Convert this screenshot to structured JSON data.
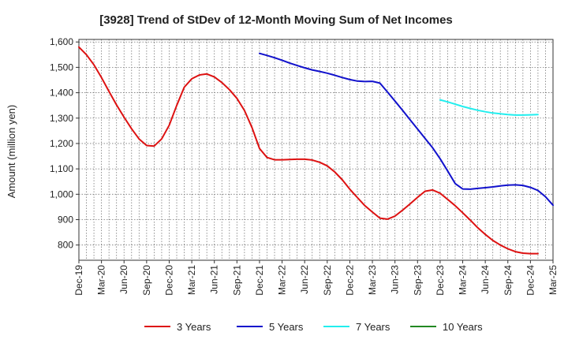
{
  "chart_data": {
    "type": "line",
    "title": "[3928]  Trend of StDev of 12-Month Moving Sum of Net Incomes",
    "ylabel": "Amount (million yen)",
    "xlabel": "",
    "ylim": [
      740,
      1610
    ],
    "yticks": [
      800,
      900,
      1000,
      1100,
      1200,
      1300,
      1400,
      1500,
      1600
    ],
    "ytick_labels": [
      "800",
      "900",
      "1,000",
      "1,100",
      "1,200",
      "1,300",
      "1,400",
      "1,500",
      "1,600"
    ],
    "xticks": [
      "Dec-19",
      "Mar-20",
      "Jun-20",
      "Sep-20",
      "Dec-20",
      "Mar-21",
      "Jun-21",
      "Sep-21",
      "Dec-21",
      "Mar-22",
      "Jun-22",
      "Sep-22",
      "Dec-22",
      "Mar-23",
      "Jun-23",
      "Sep-23",
      "Dec-23",
      "Mar-24",
      "Jun-24",
      "Sep-24",
      "Dec-24",
      "Mar-25"
    ],
    "grid": true,
    "legend_position": "bottom",
    "series": [
      {
        "name": "3 Years",
        "color": "#dd1111",
        "start_index": 0,
        "values": [
          1580,
          1550,
          1510,
          1460,
          1405,
          1352,
          1304,
          1258,
          1218,
          1192,
          1190,
          1218,
          1272,
          1350,
          1422,
          1455,
          1470,
          1474,
          1462,
          1440,
          1412,
          1378,
          1330,
          1263,
          1180,
          1145,
          1136,
          1136,
          1137,
          1138,
          1138,
          1135,
          1126,
          1112,
          1088,
          1057,
          1020,
          987,
          955,
          930,
          906,
          902,
          914,
          937,
          962,
          988,
          1012,
          1017,
          1004,
          980,
          955,
          927,
          898,
          868,
          842,
          818,
          800,
          785,
          774,
          768,
          766,
          766
        ]
      },
      {
        "name": "5 Years",
        "color": "#1111cc",
        "start_index": 24,
        "values": [
          1555,
          1547,
          1538,
          1528,
          1517,
          1507,
          1498,
          1490,
          1484,
          1477,
          1469,
          1460,
          1452,
          1446,
          1444,
          1445,
          1438,
          1403,
          1367,
          1331,
          1294,
          1257,
          1220,
          1183,
          1140,
          1092,
          1042,
          1021,
          1020,
          1023,
          1026,
          1029,
          1033,
          1036,
          1037,
          1035,
          1027,
          1015,
          990,
          957
        ]
      },
      {
        "name": "7 Years",
        "color": "#22eeee",
        "start_index": 48,
        "values": [
          1372,
          1364,
          1355,
          1346,
          1338,
          1331,
          1325,
          1320,
          1317,
          1314,
          1312,
          1312,
          1313,
          1314
        ]
      },
      {
        "name": "10 Years",
        "color": "#228822",
        "start_index": 0,
        "values": []
      }
    ]
  }
}
